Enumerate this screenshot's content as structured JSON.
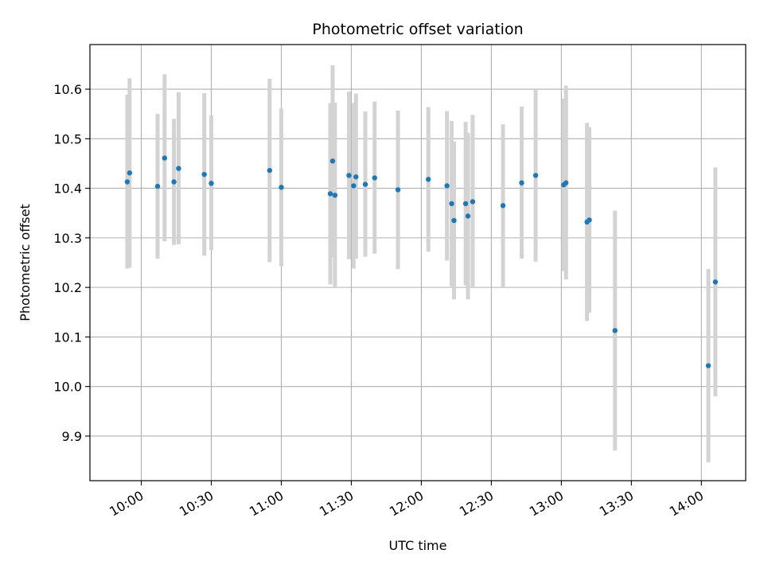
{
  "chart_data": {
    "type": "scatter",
    "title": "Photometric offset variation",
    "xlabel": "UTC time",
    "ylabel": "Photometric offset",
    "x_unit": "HH:MM UTC",
    "xlim": [
      "09:38",
      "14:19"
    ],
    "ylim": [
      9.81,
      10.69
    ],
    "grid": true,
    "x_ticks": [
      "10:00",
      "10:30",
      "11:00",
      "11:30",
      "12:00",
      "12:30",
      "13:00",
      "13:30",
      "14:00"
    ],
    "y_ticks": [
      9.9,
      10.0,
      10.1,
      10.2,
      10.3,
      10.4,
      10.5,
      10.6
    ],
    "y_tick_labels": [
      "9.9",
      "10.0",
      "10.1",
      "10.2",
      "10.3",
      "10.4",
      "10.5",
      "10.6"
    ],
    "marker_color": "#1f77b4",
    "errorbar_color": "#d3d3d3",
    "points": [
      {
        "x": "09:54",
        "y": 10.413,
        "ylo": 10.238,
        "yhi": 10.589
      },
      {
        "x": "09:55",
        "y": 10.431,
        "ylo": 10.24,
        "yhi": 10.622
      },
      {
        "x": "10:07",
        "y": 10.404,
        "ylo": 10.258,
        "yhi": 10.55
      },
      {
        "x": "10:10",
        "y": 10.461,
        "ylo": 10.293,
        "yhi": 10.63
      },
      {
        "x": "10:14",
        "y": 10.413,
        "ylo": 10.286,
        "yhi": 10.54
      },
      {
        "x": "10:16",
        "y": 10.44,
        "ylo": 10.287,
        "yhi": 10.594
      },
      {
        "x": "10:27",
        "y": 10.428,
        "ylo": 10.264,
        "yhi": 10.592
      },
      {
        "x": "10:30",
        "y": 10.41,
        "ylo": 10.275,
        "yhi": 10.547
      },
      {
        "x": "10:55",
        "y": 10.436,
        "ylo": 10.251,
        "yhi": 10.621
      },
      {
        "x": "11:00",
        "y": 10.402,
        "ylo": 10.243,
        "yhi": 10.561
      },
      {
        "x": "11:21",
        "y": 10.389,
        "ylo": 10.206,
        "yhi": 10.572
      },
      {
        "x": "11:22",
        "y": 10.455,
        "ylo": 10.261,
        "yhi": 10.648
      },
      {
        "x": "11:23",
        "y": 10.386,
        "ylo": 10.2,
        "yhi": 10.573
      },
      {
        "x": "11:29",
        "y": 10.426,
        "ylo": 10.257,
        "yhi": 10.595
      },
      {
        "x": "11:31",
        "y": 10.405,
        "ylo": 10.238,
        "yhi": 10.572
      },
      {
        "x": "11:32",
        "y": 10.423,
        "ylo": 10.258,
        "yhi": 10.591
      },
      {
        "x": "11:36",
        "y": 10.408,
        "ylo": 10.262,
        "yhi": 10.555
      },
      {
        "x": "11:40",
        "y": 10.421,
        "ylo": 10.268,
        "yhi": 10.575
      },
      {
        "x": "11:50",
        "y": 10.397,
        "ylo": 10.237,
        "yhi": 10.557
      },
      {
        "x": "12:03",
        "y": 10.418,
        "ylo": 10.272,
        "yhi": 10.564
      },
      {
        "x": "12:11",
        "y": 10.405,
        "ylo": 10.254,
        "yhi": 10.556
      },
      {
        "x": "12:13",
        "y": 10.369,
        "ylo": 10.202,
        "yhi": 10.536
      },
      {
        "x": "12:14",
        "y": 10.335,
        "ylo": 10.176,
        "yhi": 10.494
      },
      {
        "x": "12:19",
        "y": 10.369,
        "ylo": 10.204,
        "yhi": 10.534
      },
      {
        "x": "12:20",
        "y": 10.344,
        "ylo": 10.176,
        "yhi": 10.512
      },
      {
        "x": "12:22",
        "y": 10.373,
        "ylo": 10.199,
        "yhi": 10.548
      },
      {
        "x": "12:35",
        "y": 10.365,
        "ylo": 10.2,
        "yhi": 10.529
      },
      {
        "x": "12:43",
        "y": 10.411,
        "ylo": 10.258,
        "yhi": 10.565
      },
      {
        "x": "12:49",
        "y": 10.426,
        "ylo": 10.252,
        "yhi": 10.6
      },
      {
        "x": "13:01",
        "y": 10.407,
        "ylo": 10.233,
        "yhi": 10.581
      },
      {
        "x": "13:02",
        "y": 10.411,
        "ylo": 10.216,
        "yhi": 10.607
      },
      {
        "x": "13:11",
        "y": 10.332,
        "ylo": 10.132,
        "yhi": 10.532
      },
      {
        "x": "13:12",
        "y": 10.336,
        "ylo": 10.149,
        "yhi": 10.523
      },
      {
        "x": "13:23",
        "y": 10.113,
        "ylo": 9.871,
        "yhi": 10.355
      },
      {
        "x": "14:03",
        "y": 10.042,
        "ylo": 9.847,
        "yhi": 10.237
      },
      {
        "x": "14:06",
        "y": 10.211,
        "ylo": 9.98,
        "yhi": 10.442
      }
    ]
  }
}
